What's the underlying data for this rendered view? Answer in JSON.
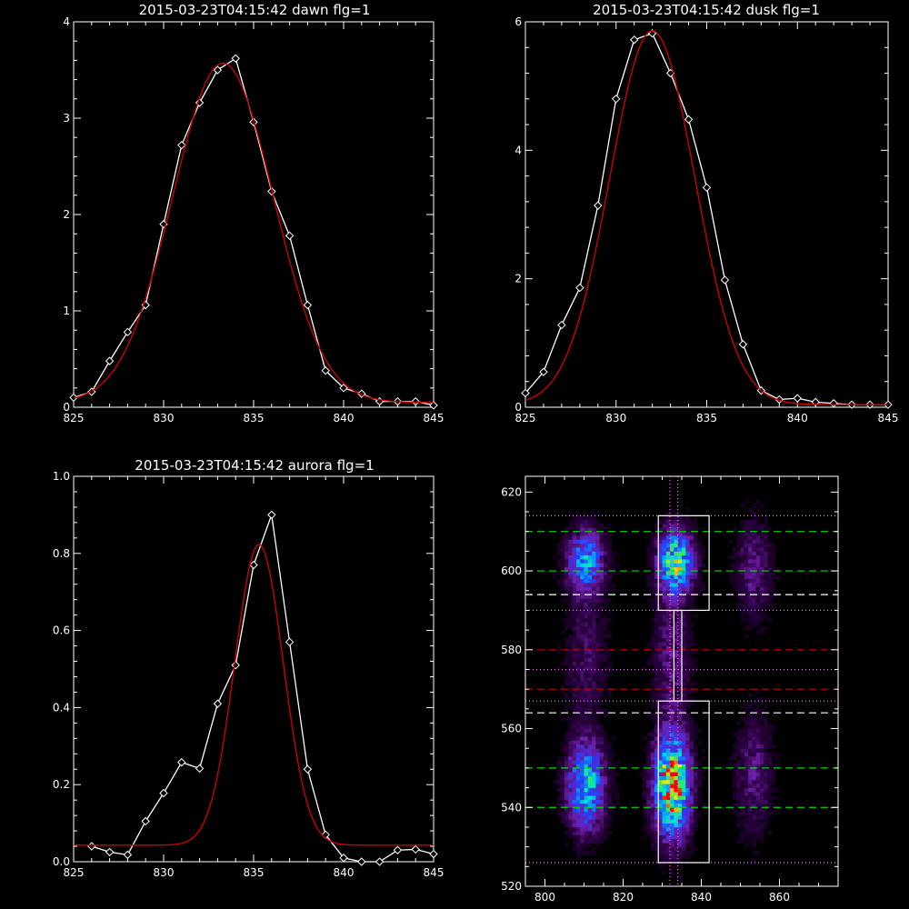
{
  "chart_data": [
    {
      "type": "line",
      "title": "2015-03-23T04:15:42 dawn flg=1",
      "xlim": [
        825,
        845
      ],
      "ylim": [
        0,
        4
      ],
      "xticks": [
        825,
        830,
        835,
        840,
        845
      ],
      "yticks": [
        0,
        1,
        2,
        3,
        4
      ],
      "series": [
        {
          "color": "#ffffff",
          "marker": "diamond",
          "points": [
            [
              825,
              0.1
            ],
            [
              826,
              0.16
            ],
            [
              827,
              0.48
            ],
            [
              828,
              0.78
            ],
            [
              829,
              1.06
            ],
            [
              830,
              1.9
            ],
            [
              831,
              2.72
            ],
            [
              832,
              3.16
            ],
            [
              833,
              3.5
            ],
            [
              834,
              3.62
            ],
            [
              835,
              2.96
            ],
            [
              836,
              2.24
            ],
            [
              837,
              1.78
            ],
            [
              838,
              1.06
            ],
            [
              839,
              0.38
            ],
            [
              840,
              0.2
            ],
            [
              841,
              0.14
            ],
            [
              842,
              0.06
            ],
            [
              843,
              0.06
            ],
            [
              844,
              0.06
            ],
            [
              845,
              0.02
            ]
          ]
        },
        {
          "color": "#cc0000",
          "marker": "none",
          "fit": {
            "amp": 3.52,
            "center": 833.3,
            "sigma": 2.8,
            "base": 0.05
          }
        }
      ]
    },
    {
      "type": "line",
      "title": "2015-03-23T04:15:42 dusk flg=1",
      "xlim": [
        825,
        845
      ],
      "ylim": [
        0,
        6
      ],
      "xticks": [
        825,
        830,
        835,
        840,
        845
      ],
      "yticks": [
        0,
        2,
        4,
        6
      ],
      "series": [
        {
          "color": "#ffffff",
          "marker": "diamond",
          "points": [
            [
              825,
              0.22
            ],
            [
              826,
              0.55
            ],
            [
              827,
              1.28
            ],
            [
              828,
              1.86
            ],
            [
              829,
              3.14
            ],
            [
              830,
              4.8
            ],
            [
              831,
              5.72
            ],
            [
              832,
              5.82
            ],
            [
              833,
              5.2
            ],
            [
              834,
              4.48
            ],
            [
              835,
              3.42
            ],
            [
              836,
              1.98
            ],
            [
              837,
              0.98
            ],
            [
              838,
              0.26
            ],
            [
              839,
              0.12
            ],
            [
              840,
              0.14
            ],
            [
              841,
              0.08
            ],
            [
              842,
              0.06
            ],
            [
              843,
              0.04
            ],
            [
              844,
              0.04
            ],
            [
              845,
              0.04
            ]
          ]
        },
        {
          "color": "#cc0000",
          "marker": "none",
          "fit": {
            "amp": 5.82,
            "center": 832.0,
            "sigma": 2.35,
            "base": 0.04
          }
        }
      ]
    },
    {
      "type": "line",
      "title": "2015-03-23T04:15:42 aurora flg=1",
      "xlim": [
        825,
        845
      ],
      "ylim": [
        0,
        1.0
      ],
      "xticks": [
        825,
        830,
        835,
        840,
        845
      ],
      "yticks": [
        0.0,
        0.2,
        0.4,
        0.6,
        0.8,
        1.0
      ],
      "ytick_labels": [
        "0.0",
        "0.2",
        "0.4",
        "0.6",
        "0.8",
        "1.0"
      ],
      "series": [
        {
          "color": "#ffffff",
          "marker": "diamond",
          "points": [
            [
              826,
              0.04
            ],
            [
              827,
              0.025
            ],
            [
              828,
              0.018
            ],
            [
              829,
              0.105
            ],
            [
              830,
              0.178
            ],
            [
              831,
              0.258
            ],
            [
              832,
              0.242
            ],
            [
              833,
              0.41
            ],
            [
              834,
              0.51
            ],
            [
              835,
              0.77
            ],
            [
              836,
              0.9
            ],
            [
              837,
              0.57
            ],
            [
              838,
              0.24
            ],
            [
              839,
              0.07
            ],
            [
              840,
              0.01
            ],
            [
              841,
              0.0
            ],
            [
              842,
              0.0
            ],
            [
              843,
              0.03
            ],
            [
              844,
              0.032
            ],
            [
              845,
              0.02
            ]
          ]
        },
        {
          "color": "#cc0000",
          "marker": "none",
          "fit": {
            "amp": 0.78,
            "center": 835.3,
            "sigma": 1.35,
            "base": 0.043
          }
        }
      ]
    },
    {
      "type": "heatmap",
      "colormap": "rainbow",
      "xlim": [
        795,
        875
      ],
      "ylim": [
        520,
        624
      ],
      "xticks": [
        800,
        820,
        840,
        860
      ],
      "yticks": [
        520,
        540,
        560,
        580,
        600,
        620
      ],
      "blobs": [
        {
          "x": 810,
          "y": 545,
          "sx": 3.0,
          "sy": 7,
          "amp": 0.55
        },
        {
          "x": 810,
          "y": 602,
          "sx": 3.0,
          "sy": 5,
          "amp": 0.45
        },
        {
          "x": 810,
          "y": 578,
          "sx": 3.5,
          "sy": 12,
          "amp": 0.1
        },
        {
          "x": 832,
          "y": 545,
          "sx": 2.8,
          "sy": 8,
          "amp": 0.95
        },
        {
          "x": 833,
          "y": 602,
          "sx": 2.8,
          "sy": 5,
          "amp": 0.7
        },
        {
          "x": 832,
          "y": 578,
          "sx": 3.0,
          "sy": 12,
          "amp": 0.14
        },
        {
          "x": 853,
          "y": 548,
          "sx": 3.0,
          "sy": 10,
          "amp": 0.14
        },
        {
          "x": 853,
          "y": 600,
          "sx": 3.0,
          "sy": 8,
          "amp": 0.14
        }
      ],
      "boxes": [
        {
          "x0": 829,
          "x1": 842,
          "y0": 526,
          "y1": 567
        },
        {
          "x0": 829,
          "x1": 842,
          "y0": 590,
          "y1": 614
        },
        {
          "x0": 833,
          "x1": 835,
          "y0": 567,
          "y1": 590
        }
      ],
      "hlines": [
        {
          "y": 614,
          "color": "#ff66ff",
          "style": "dotted"
        },
        {
          "y": 610,
          "color": "#00dd00",
          "style": "dashed"
        },
        {
          "y": 600,
          "color": "#00dd00",
          "style": "dashed"
        },
        {
          "y": 594,
          "color": "#ffffff",
          "style": "dashed"
        },
        {
          "y": 590,
          "color": "#ff66ff",
          "style": "dotted"
        },
        {
          "y": 580,
          "color": "#cc0000",
          "style": "dashed"
        },
        {
          "y": 575,
          "color": "#ff66ff",
          "style": "dotted"
        },
        {
          "y": 570,
          "color": "#cc0000",
          "style": "dashed"
        },
        {
          "y": 567,
          "color": "#ff66ff",
          "style": "dotted"
        },
        {
          "y": 564,
          "color": "#ffffff",
          "style": "dashed"
        },
        {
          "y": 550,
          "color": "#00dd00",
          "style": "dashed"
        },
        {
          "y": 540,
          "color": "#00dd00",
          "style": "dashed"
        },
        {
          "y": 526,
          "color": "#ff66ff",
          "style": "dotted"
        }
      ],
      "vlines": [
        {
          "x": 832,
          "color": "#ff66ff",
          "style": "dotted"
        },
        {
          "x": 834,
          "color": "#ff66ff",
          "style": "dotted"
        }
      ]
    }
  ]
}
